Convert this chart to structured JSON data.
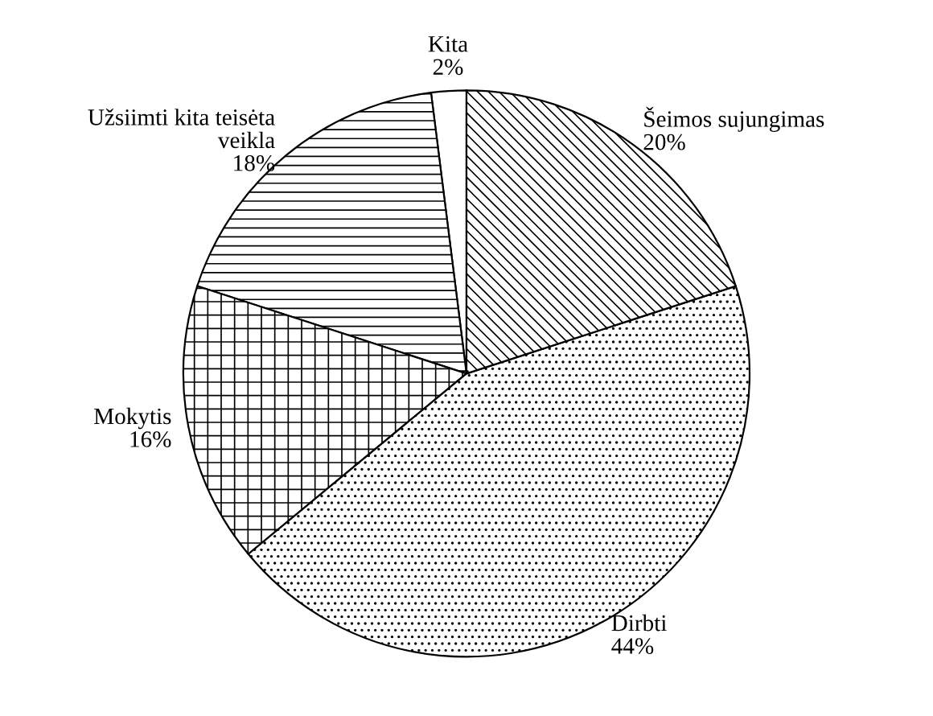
{
  "chart_data": {
    "type": "pie",
    "categories": [
      "Kita",
      "Užsiimti kita teisėta\nveikla",
      "Mokytis",
      "Dirbti",
      "Šeimos sujungimas"
    ],
    "values": [
      2,
      18,
      16,
      44,
      20
    ],
    "value_labels": [
      "2%",
      "18%",
      "16%",
      "44%",
      "20%"
    ],
    "legend": false
  }
}
